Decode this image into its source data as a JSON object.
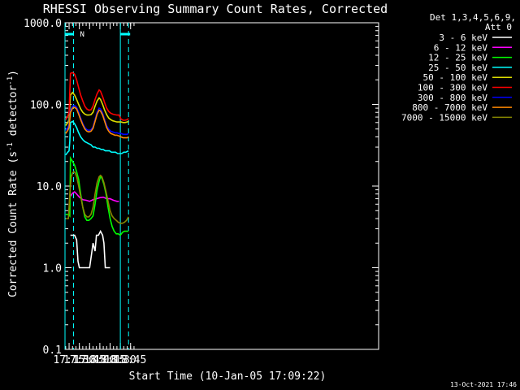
{
  "chart_data": {
    "type": "line",
    "title": "RHESSI Observing Summary Count Rates, Corrected",
    "xlabel": "Start Time (10-Jan-05 17:09:22)",
    "ylabel": "Corrected Count Rate (s",
    "ylabel_sup1": "-1",
    "ylabel_mid": " detector",
    "ylabel_sup2": "-1",
    "ylabel_end": ")",
    "yscale": "log",
    "ylim": [
      0.1,
      1000
    ],
    "xlim_min": [
      1029,
      1488
    ],
    "y_ticks": [
      "1000.0",
      "100.0",
      "10.0",
      "1.0",
      "0.1"
    ],
    "x_ticks": [
      "17:15",
      "17:30",
      "17:45",
      "18:00",
      "18:15",
      "18:30",
      "18:45"
    ],
    "x_tick_values_min": [
      1035,
      1050,
      1065,
      1080,
      1095,
      1110,
      1125
    ],
    "legend_header": "Det 1,3,4,5,6,9,",
    "legend_att": "Att 0",
    "footer": "13-Oct-2021 17:46",
    "flag_label": "N",
    "markers_min": [
      1029,
      1041.5,
      1110,
      1122
    ],
    "series": [
      {
        "name": "3 - 6 keV",
        "color": "#ffffff",
        "points": [
          [
            1036,
            null
          ],
          [
            1037,
            2.5
          ],
          [
            1040,
            2.5
          ],
          [
            1043,
            2.5
          ],
          [
            1046,
            2.2
          ],
          [
            1048,
            1.2
          ],
          [
            1050,
            1.0
          ],
          [
            1055,
            1.0
          ],
          [
            1060,
            1.0
          ],
          [
            1065,
            1.0
          ],
          [
            1068,
            1.5
          ],
          [
            1070,
            2.0
          ],
          [
            1073,
            1.6
          ],
          [
            1075,
            2.5
          ],
          [
            1078,
            2.5
          ],
          [
            1081,
            2.8
          ],
          [
            1084,
            2.5
          ],
          [
            1086,
            2.0
          ],
          [
            1088,
            1.0
          ],
          [
            1092,
            1.0
          ],
          [
            1095,
            1.0
          ],
          [
            1096,
            null
          ]
        ]
      },
      {
        "name": "6 - 12 keV",
        "color": "#ff00ff",
        "points": [
          [
            1037,
            7.5
          ],
          [
            1040,
            8.2
          ],
          [
            1043,
            8.5
          ],
          [
            1046,
            8.0
          ],
          [
            1050,
            7.3
          ],
          [
            1055,
            6.8
          ],
          [
            1060,
            6.7
          ],
          [
            1065,
            6.5
          ],
          [
            1070,
            6.8
          ],
          [
            1075,
            7.0
          ],
          [
            1080,
            7.2
          ],
          [
            1085,
            7.3
          ],
          [
            1090,
            7.0
          ],
          [
            1095,
            7.0
          ],
          [
            1100,
            6.7
          ],
          [
            1105,
            6.5
          ],
          [
            1108,
            6.5
          ]
        ]
      },
      {
        "name": "12 - 25 keV",
        "color": "#00ff00",
        "points": [
          [
            1030,
            4.5
          ],
          [
            1034,
            4.5
          ],
          [
            1036,
            4.3
          ],
          [
            1037,
            22
          ],
          [
            1040,
            20
          ],
          [
            1043,
            18
          ],
          [
            1046,
            15
          ],
          [
            1049,
            12
          ],
          [
            1052,
            8
          ],
          [
            1055,
            5.5
          ],
          [
            1058,
            4.2
          ],
          [
            1061,
            3.8
          ],
          [
            1064,
            3.8
          ],
          [
            1067,
            4.0
          ],
          [
            1070,
            4.3
          ],
          [
            1073,
            6.0
          ],
          [
            1076,
            9.0
          ],
          [
            1079,
            11.5
          ],
          [
            1081,
            13
          ],
          [
            1083,
            12.5
          ],
          [
            1086,
            10.5
          ],
          [
            1089,
            8.0
          ],
          [
            1092,
            5.5
          ],
          [
            1095,
            4.0
          ],
          [
            1098,
            3.2
          ],
          [
            1101,
            2.8
          ],
          [
            1104,
            2.6
          ],
          [
            1107,
            2.6
          ],
          [
            1110,
            2.5
          ],
          [
            1113,
            2.7
          ],
          [
            1116,
            2.8
          ],
          [
            1119,
            2.8
          ],
          [
            1122,
            2.8
          ]
        ]
      },
      {
        "name": "25 - 50 keV",
        "color": "#00ffff",
        "points": [
          [
            1030,
            24
          ],
          [
            1033,
            26
          ],
          [
            1035,
            27
          ],
          [
            1036,
            35
          ],
          [
            1037,
            60
          ],
          [
            1040,
            62
          ],
          [
            1043,
            58
          ],
          [
            1046,
            52
          ],
          [
            1049,
            45
          ],
          [
            1052,
            40
          ],
          [
            1055,
            37
          ],
          [
            1058,
            35
          ],
          [
            1061,
            34
          ],
          [
            1064,
            33
          ],
          [
            1067,
            32
          ],
          [
            1070,
            30
          ],
          [
            1073,
            30
          ],
          [
            1076,
            29
          ],
          [
            1079,
            29
          ],
          [
            1082,
            28
          ],
          [
            1085,
            28
          ],
          [
            1088,
            27
          ],
          [
            1091,
            27
          ],
          [
            1094,
            27
          ],
          [
            1097,
            26
          ],
          [
            1100,
            26
          ],
          [
            1103,
            26
          ],
          [
            1106,
            25
          ],
          [
            1109,
            25
          ],
          [
            1112,
            25
          ],
          [
            1115,
            26
          ],
          [
            1118,
            26
          ],
          [
            1122,
            27
          ]
        ]
      },
      {
        "name": "50 - 100 keV",
        "color": "#dddd00",
        "points": [
          [
            1030,
            55
          ],
          [
            1033,
            60
          ],
          [
            1035,
            65
          ],
          [
            1037,
            130
          ],
          [
            1040,
            140
          ],
          [
            1043,
            130
          ],
          [
            1046,
            115
          ],
          [
            1049,
            100
          ],
          [
            1052,
            88
          ],
          [
            1055,
            80
          ],
          [
            1058,
            76
          ],
          [
            1061,
            74
          ],
          [
            1064,
            74
          ],
          [
            1067,
            75
          ],
          [
            1070,
            80
          ],
          [
            1073,
            95
          ],
          [
            1076,
            110
          ],
          [
            1079,
            120
          ],
          [
            1081,
            115
          ],
          [
            1084,
            100
          ],
          [
            1087,
            85
          ],
          [
            1090,
            75
          ],
          [
            1093,
            68
          ],
          [
            1096,
            65
          ],
          [
            1099,
            63
          ],
          [
            1102,
            62
          ],
          [
            1105,
            61
          ],
          [
            1108,
            61
          ],
          [
            1111,
            61
          ],
          [
            1114,
            60
          ],
          [
            1117,
            60
          ],
          [
            1120,
            61
          ],
          [
            1122,
            62
          ]
        ]
      },
      {
        "name": "100 - 300 keV",
        "color": "#ff0000",
        "points": [
          [
            1030,
            65
          ],
          [
            1033,
            72
          ],
          [
            1035,
            80
          ],
          [
            1037,
            240
          ],
          [
            1040,
            245
          ],
          [
            1043,
            235
          ],
          [
            1046,
            200
          ],
          [
            1049,
            160
          ],
          [
            1052,
            130
          ],
          [
            1055,
            110
          ],
          [
            1058,
            95
          ],
          [
            1061,
            88
          ],
          [
            1064,
            85
          ],
          [
            1067,
            86
          ],
          [
            1070,
            95
          ],
          [
            1073,
            115
          ],
          [
            1076,
            135
          ],
          [
            1079,
            150
          ],
          [
            1081,
            145
          ],
          [
            1084,
            125
          ],
          [
            1087,
            105
          ],
          [
            1090,
            90
          ],
          [
            1093,
            82
          ],
          [
            1096,
            78
          ],
          [
            1099,
            76
          ],
          [
            1102,
            75
          ],
          [
            1105,
            74
          ],
          [
            1108,
            74
          ],
          [
            1111,
            66
          ],
          [
            1114,
            64
          ],
          [
            1117,
            64
          ],
          [
            1120,
            65
          ],
          [
            1122,
            67
          ]
        ]
      },
      {
        "name": "300 - 800 keV",
        "color": "#0000ff",
        "points": [
          [
            1030,
            48
          ],
          [
            1033,
            52
          ],
          [
            1035,
            57
          ],
          [
            1037,
            85
          ],
          [
            1040,
            95
          ],
          [
            1043,
            97
          ],
          [
            1046,
            92
          ],
          [
            1049,
            80
          ],
          [
            1052,
            68
          ],
          [
            1055,
            58
          ],
          [
            1058,
            52
          ],
          [
            1061,
            49
          ],
          [
            1064,
            48
          ],
          [
            1067,
            49
          ],
          [
            1070,
            53
          ],
          [
            1073,
            65
          ],
          [
            1076,
            80
          ],
          [
            1079,
            90
          ],
          [
            1081,
            88
          ],
          [
            1084,
            78
          ],
          [
            1087,
            65
          ],
          [
            1090,
            55
          ],
          [
            1093,
            50
          ],
          [
            1096,
            47
          ],
          [
            1099,
            46
          ],
          [
            1102,
            45
          ],
          [
            1105,
            45
          ],
          [
            1108,
            44
          ],
          [
            1111,
            44
          ],
          [
            1114,
            43
          ],
          [
            1117,
            43
          ],
          [
            1120,
            43
          ],
          [
            1122,
            44
          ]
        ]
      },
      {
        "name": "800 - 7000 keV",
        "color": "#ff8800",
        "points": [
          [
            1030,
            44
          ],
          [
            1033,
            48
          ],
          [
            1035,
            52
          ],
          [
            1037,
            80
          ],
          [
            1040,
            90
          ],
          [
            1043,
            92
          ],
          [
            1046,
            88
          ],
          [
            1049,
            76
          ],
          [
            1052,
            65
          ],
          [
            1055,
            56
          ],
          [
            1058,
            50
          ],
          [
            1061,
            47
          ],
          [
            1064,
            46
          ],
          [
            1067,
            47
          ],
          [
            1070,
            51
          ],
          [
            1073,
            62
          ],
          [
            1076,
            76
          ],
          [
            1079,
            85
          ],
          [
            1081,
            83
          ],
          [
            1084,
            74
          ],
          [
            1087,
            62
          ],
          [
            1090,
            52
          ],
          [
            1093,
            47
          ],
          [
            1096,
            44
          ],
          [
            1099,
            43
          ],
          [
            1102,
            42
          ],
          [
            1105,
            42
          ],
          [
            1108,
            41
          ],
          [
            1111,
            40
          ],
          [
            1114,
            39
          ],
          [
            1117,
            39
          ],
          [
            1120,
            39
          ],
          [
            1122,
            40
          ]
        ]
      },
      {
        "name": "7000 - 15000 keV",
        "color": "#888800",
        "points": [
          [
            1030,
            4.0
          ],
          [
            1034,
            4.0
          ],
          [
            1036,
            8.0
          ],
          [
            1038,
            13
          ],
          [
            1040,
            14.5
          ],
          [
            1042,
            15
          ],
          [
            1044,
            14.5
          ],
          [
            1046,
            13
          ],
          [
            1049,
            10
          ],
          [
            1052,
            7.5
          ],
          [
            1055,
            5.5
          ],
          [
            1058,
            4.5
          ],
          [
            1061,
            4.2
          ],
          [
            1064,
            4.2
          ],
          [
            1067,
            4.5
          ],
          [
            1070,
            5.5
          ],
          [
            1073,
            8.0
          ],
          [
            1076,
            11
          ],
          [
            1079,
            13
          ],
          [
            1081,
            13.5
          ],
          [
            1083,
            13
          ],
          [
            1086,
            11
          ],
          [
            1089,
            8.5
          ],
          [
            1092,
            6.5
          ],
          [
            1095,
            5.0
          ],
          [
            1098,
            4.3
          ],
          [
            1101,
            4.0
          ],
          [
            1104,
            3.8
          ],
          [
            1107,
            3.6
          ],
          [
            1110,
            3.5
          ],
          [
            1113,
            3.5
          ],
          [
            1116,
            3.6
          ],
          [
            1119,
            3.8
          ],
          [
            1122,
            4.2
          ]
        ]
      }
    ]
  }
}
